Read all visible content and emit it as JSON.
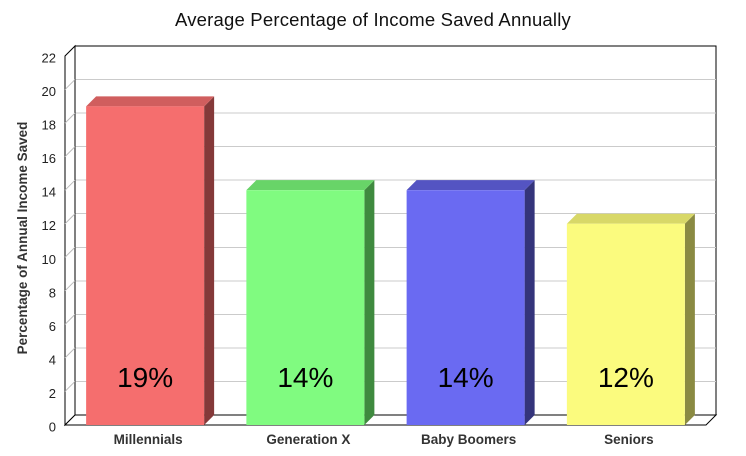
{
  "chart_data": {
    "type": "bar",
    "style": "3d-columns",
    "title": "Average Percentage of Income Saved Annually",
    "ylabel": "Percentage of Annual Income Saved",
    "xlabel": "",
    "categories": [
      "Millennials",
      "Generation X",
      "Baby Boomers",
      "Seniors"
    ],
    "values": [
      19,
      14,
      14,
      12
    ],
    "value_labels": [
      "19%",
      "14%",
      "14%",
      "12%"
    ],
    "ylim": [
      0,
      22
    ],
    "ytick_step": 2,
    "yticks": [
      0,
      2,
      4,
      6,
      8,
      10,
      12,
      14,
      16,
      18,
      20,
      22
    ],
    "grid": true,
    "legend": "none",
    "background": "#FFFFFF",
    "gridline_color": "#CBCBCB",
    "frame_color": "#000000",
    "text_colors": {
      "title": "#111111",
      "ticks": "#222222",
      "categories": "#333333",
      "value_labels": "#000000",
      "axis_title": "#333333"
    },
    "colors": [
      {
        "name": "red",
        "front": "#F56E6E",
        "top": "#D05E5E",
        "side": "#843939"
      },
      {
        "name": "green",
        "front": "#80FB80",
        "top": "#68D468",
        "side": "#3F8A3F"
      },
      {
        "name": "blue",
        "front": "#6A6AF2",
        "top": "#5454C2",
        "side": "#34347B"
      },
      {
        "name": "yellow",
        "front": "#FBFB7E",
        "top": "#D8D868",
        "side": "#8A8A42"
      }
    ]
  }
}
